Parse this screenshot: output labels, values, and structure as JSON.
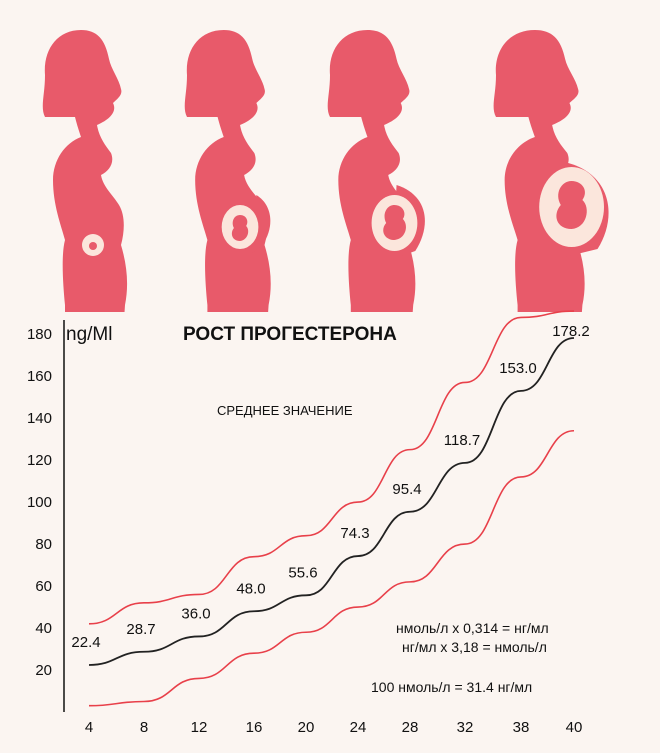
{
  "colors": {
    "silhouette": "#e85a6a",
    "womb": "#fbe6dc",
    "fetus": "#e85a6a",
    "mean_line": "#222222",
    "bound_line": "#e8404a",
    "axis": "#111111"
  },
  "illustration": {
    "figures": [
      "first-trimester-figure",
      "second-trimester-figure",
      "third-trimester-figure",
      "late-pregnancy-figure"
    ]
  },
  "chart_data": {
    "type": "line",
    "title": "РОСТ ПРОГЕСТЕРОНА",
    "ylabel": "ng/Ml",
    "subtitle": "СРЕДНЕЕ ЗНАЧЕНИЕ",
    "categories": [
      "4",
      "8",
      "12",
      "16",
      "20",
      "24",
      "28",
      "32",
      "38",
      "40"
    ],
    "y_ticks": [
      20,
      40,
      60,
      80,
      100,
      120,
      140,
      160,
      180
    ],
    "ylim": [
      0,
      182
    ],
    "series": [
      {
        "name": "upper",
        "values": [
          42,
          52,
          56,
          74,
          84,
          100,
          125,
          157,
          188,
          191
        ]
      },
      {
        "name": "mean",
        "values": [
          22.4,
          28.7,
          36.0,
          48.0,
          55.6,
          74.3,
          95.4,
          118.7,
          153.0,
          178.2
        ]
      },
      {
        "name": "lower",
        "values": [
          3,
          5,
          16,
          28,
          38,
          50,
          62,
          80,
          112,
          134
        ]
      }
    ],
    "data_labels": [
      "22.4",
      "28.7",
      "36.0",
      "48.0",
      "55.6",
      "74.3",
      "95.4",
      "118.7",
      "153.0",
      "178.2"
    ],
    "notes": [
      "нмоль/л х 0,314 = нг/мл",
      "нг/мл х 3,18 = нмоль/л",
      "100 нмоль/л = 31.4 нг/мл"
    ]
  }
}
